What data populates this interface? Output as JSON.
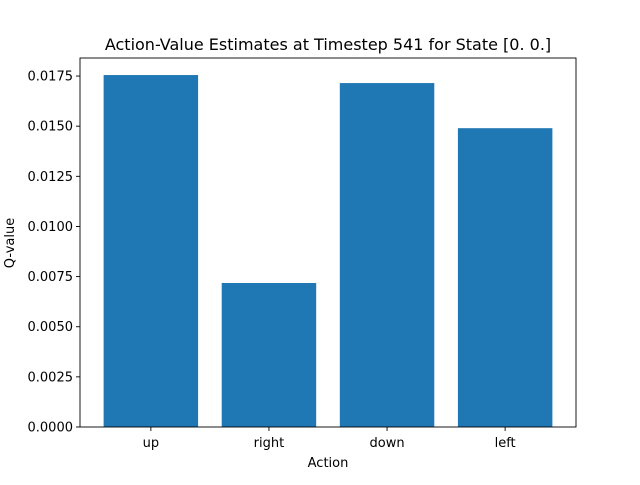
{
  "chart_data": {
    "type": "bar",
    "title": "Action-Value Estimates at Timestep 541 for State [0. 0.]",
    "xlabel": "Action",
    "ylabel": "Q-value",
    "categories": [
      "up",
      "right",
      "down",
      "left"
    ],
    "values": [
      0.01755,
      0.00718,
      0.01715,
      0.0149
    ],
    "ylim": [
      0,
      0.0184
    ],
    "yticks": [
      0.0,
      0.0025,
      0.005,
      0.0075,
      0.01,
      0.0125,
      0.015,
      0.0175
    ],
    "ytick_labels": [
      "0.0000",
      "0.0025",
      "0.0050",
      "0.0075",
      "0.0100",
      "0.0125",
      "0.0150",
      "0.0175"
    ],
    "bar_color": "#1f77b4",
    "grid": false,
    "legend": "none"
  }
}
